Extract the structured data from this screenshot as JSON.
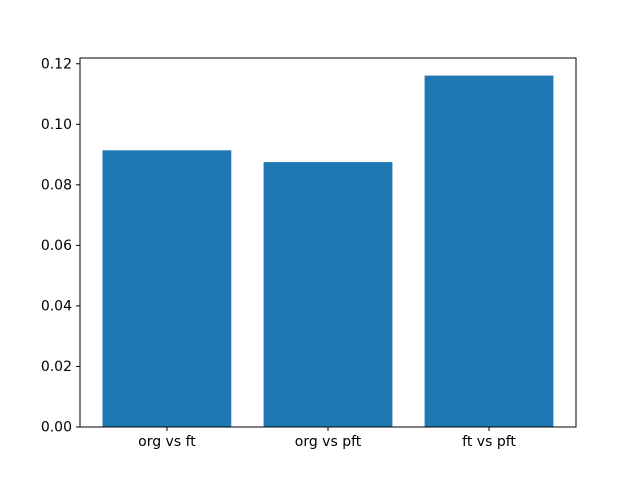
{
  "chart_data": {
    "type": "bar",
    "categories": [
      "org vs ft",
      "org vs pft",
      "ft vs pft"
    ],
    "values": [
      0.0914,
      0.0875,
      0.1161
    ],
    "title": "",
    "xlabel": "",
    "ylabel": "",
    "xlim": [
      -0.54,
      2.54
    ],
    "ylim": [
      0,
      0.1219
    ],
    "bar_width": 0.8,
    "yticks": {
      "values": [
        0.0,
        0.02,
        0.04,
        0.06,
        0.08,
        0.1,
        0.12
      ],
      "labels": [
        "0.00",
        "0.02",
        "0.04",
        "0.06",
        "0.08",
        "0.10",
        "0.12"
      ]
    },
    "bar_color": "#1f77b4",
    "axis_color": "#000000",
    "text_color": "#000000",
    "background_color": "#ffffff",
    "grid": false,
    "legend": null
  }
}
